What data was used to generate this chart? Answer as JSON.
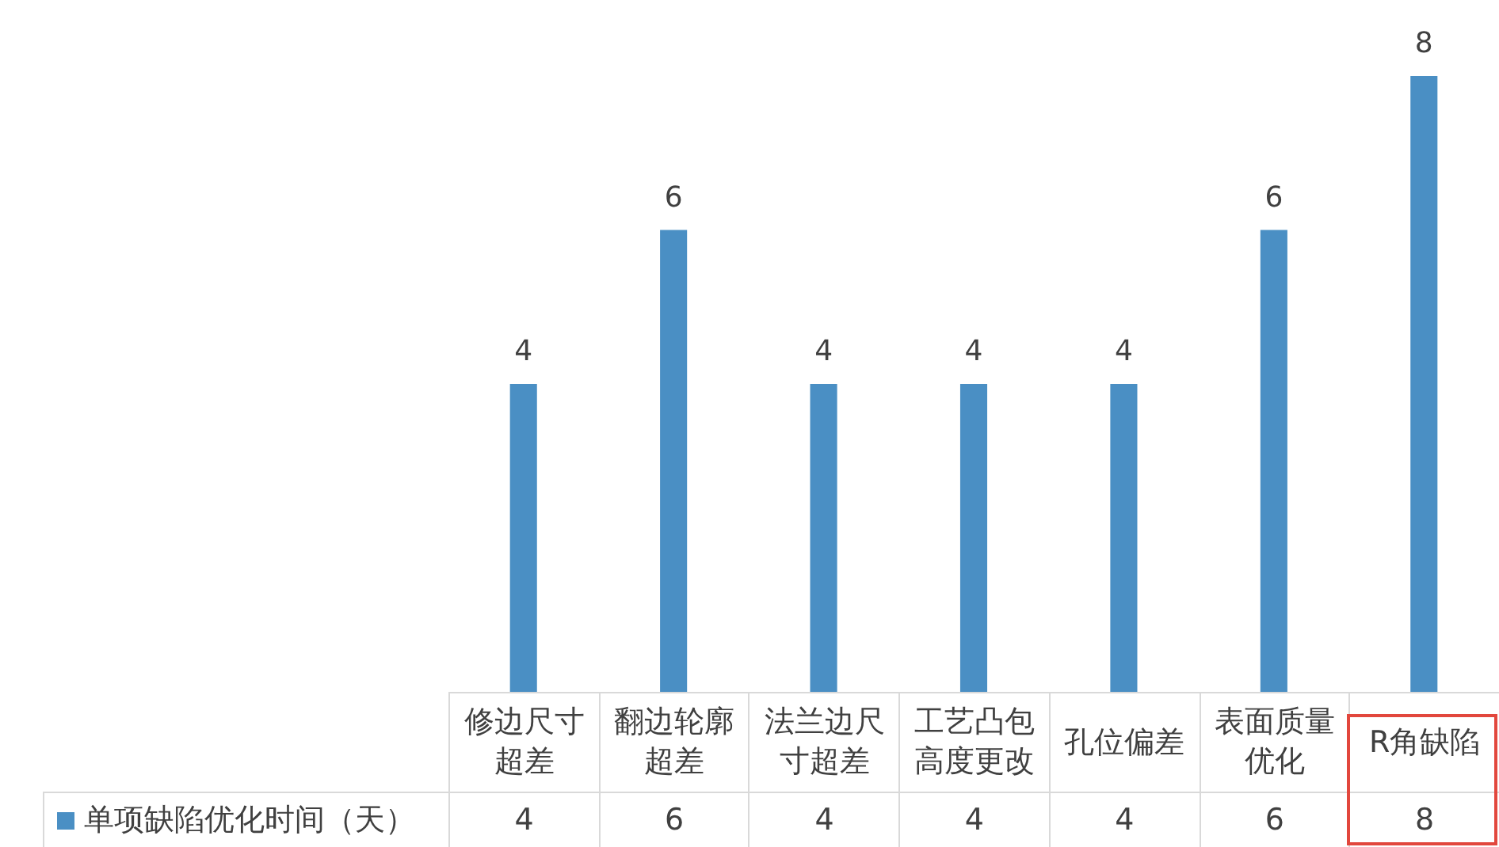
{
  "chart_data": {
    "type": "bar",
    "categories": [
      "修边尺寸超差",
      "翻边轮廓超差",
      "法兰边尺寸超差",
      "工艺凸包高度更改",
      "孔位偏差",
      "表面质量优化",
      "R角缺陷"
    ],
    "series": [
      {
        "name": "单项缺陷优化时间（天）",
        "color": "#4a8fc4",
        "values": [
          4,
          6,
          4,
          4,
          4,
          6,
          8
        ]
      }
    ],
    "annotations": [
      {
        "text": "4",
        "x": "修边尺寸超差",
        "y": 4
      },
      {
        "text": "6",
        "x": "翻边轮廓超差",
        "y": 6
      },
      {
        "text": "4",
        "x": "法兰边尺寸超差",
        "y": 4
      },
      {
        "text": "4",
        "x": "工艺凸包高度更改",
        "y": 4
      },
      {
        "text": "4",
        "x": "孔位偏差",
        "y": 4
      },
      {
        "text": "6",
        "x": "表面质量优化",
        "y": 6
      },
      {
        "text": "8",
        "x": "R角缺陷",
        "y": 8
      }
    ],
    "data_labels": true,
    "legend": "bottom",
    "tick_labels": "x"
  }
}
